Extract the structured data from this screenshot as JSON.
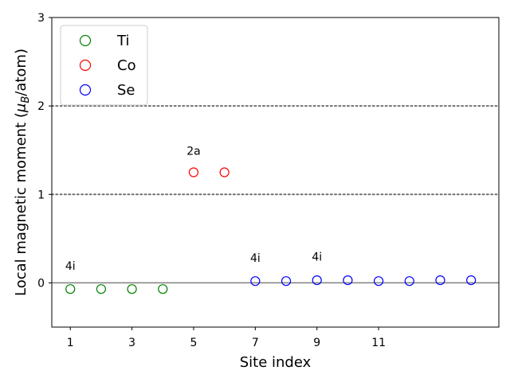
{
  "chart_data": {
    "type": "scatter",
    "xlabel": "Site index",
    "ylabel_main": "Local magnetic moment (",
    "ylabel_mu": "μ",
    "ylabel_sub": "B",
    "ylabel_unit": "/atom)",
    "xlim": [
      0.4,
      14.9
    ],
    "ylim": [
      -0.5,
      3.0
    ],
    "x_ticks": [
      1,
      3,
      5,
      7,
      9,
      11
    ],
    "x_tick_labels": [
      "1",
      "3",
      "5",
      "7",
      "9",
      "11"
    ],
    "y_ticks": [
      0,
      1,
      2,
      3
    ],
    "y_tick_labels": [
      "0",
      "1",
      "2",
      "3"
    ],
    "reference_lines": [
      {
        "y": 0,
        "style": "solid"
      },
      {
        "y": 1,
        "style": "dotted"
      },
      {
        "y": 2,
        "style": "dotted"
      }
    ],
    "legend_position": "top-left",
    "series": [
      {
        "name": "Ti",
        "color": "#008000",
        "x": [
          1,
          2,
          3,
          4
        ],
        "y": [
          -0.07,
          -0.07,
          -0.07,
          -0.07
        ]
      },
      {
        "name": "Co",
        "color": "#ff0000",
        "x": [
          5,
          6
        ],
        "y": [
          1.25,
          1.25
        ]
      },
      {
        "name": "Se",
        "color": "#0000ff",
        "x": [
          7,
          8,
          9,
          10,
          11,
          12,
          13,
          14
        ],
        "y": [
          0.02,
          0.02,
          0.03,
          0.03,
          0.02,
          0.02,
          0.03,
          0.03
        ]
      }
    ],
    "annotations": [
      {
        "text": "4i",
        "x": 1,
        "y": 0.15
      },
      {
        "text": "2a",
        "x": 5,
        "y": 1.45
      },
      {
        "text": "4i",
        "x": 7,
        "y": 0.24
      },
      {
        "text": "4i",
        "x": 9,
        "y": 0.25
      }
    ]
  }
}
